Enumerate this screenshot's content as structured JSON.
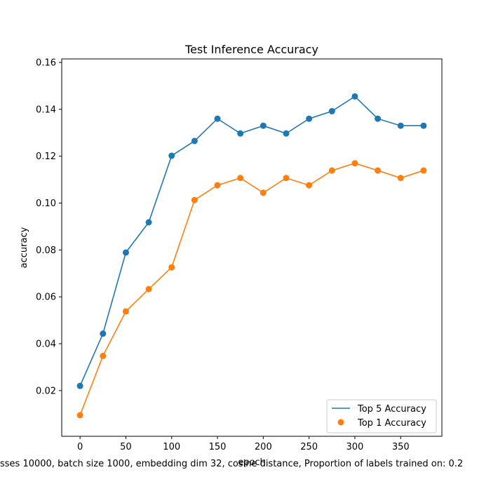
{
  "chart_data": {
    "type": "line",
    "title": "Test Inference Accuracy",
    "xlabel": "epoch",
    "ylabel": "accuracy",
    "caption": "sses 10000, batch size 1000, embedding dim 32, cosine distance, Proportion of labels trained on: 0.2",
    "xlim": [
      -20,
      395
    ],
    "ylim": [
      0.0005,
      0.1615
    ],
    "xticks": [
      0,
      50,
      100,
      150,
      200,
      250,
      300,
      350
    ],
    "yticks": [
      0.02,
      0.04,
      0.06,
      0.08,
      0.1,
      0.12,
      0.14,
      0.16
    ],
    "ytick_labels": [
      "0.02",
      "0.04",
      "0.06",
      "0.08",
      "0.10",
      "0.12",
      "0.14",
      "0.16"
    ],
    "x": [
      0,
      25,
      50,
      75,
      100,
      125,
      150,
      175,
      200,
      225,
      250,
      275,
      300,
      325,
      350,
      375
    ],
    "series": [
      {
        "name": "Top 5 Accuracy",
        "color": "#1f77b4",
        "values": [
          0.022,
          0.0443,
          0.0789,
          0.0918,
          0.1202,
          0.1265,
          0.136,
          0.1297,
          0.133,
          0.1297,
          0.136,
          0.1392,
          0.1455,
          0.136,
          0.133,
          0.133
        ]
      },
      {
        "name": "Top 1 Accuracy",
        "color": "#ff7f0e",
        "values": [
          0.0095,
          0.0348,
          0.0538,
          0.0633,
          0.0726,
          0.1013,
          0.1076,
          0.1107,
          0.1044,
          0.1107,
          0.1076,
          0.1139,
          0.117,
          0.1139,
          0.1107,
          0.1139
        ]
      }
    ],
    "legend": {
      "placement": "lower-right",
      "entries": [
        {
          "label": "Top 5 Accuracy",
          "marker": "line",
          "color": "#1f77b4"
        },
        {
          "label": "Top 1 Accuracy",
          "marker": "dot",
          "color": "#ff7f0e"
        }
      ]
    },
    "grid": false
  }
}
